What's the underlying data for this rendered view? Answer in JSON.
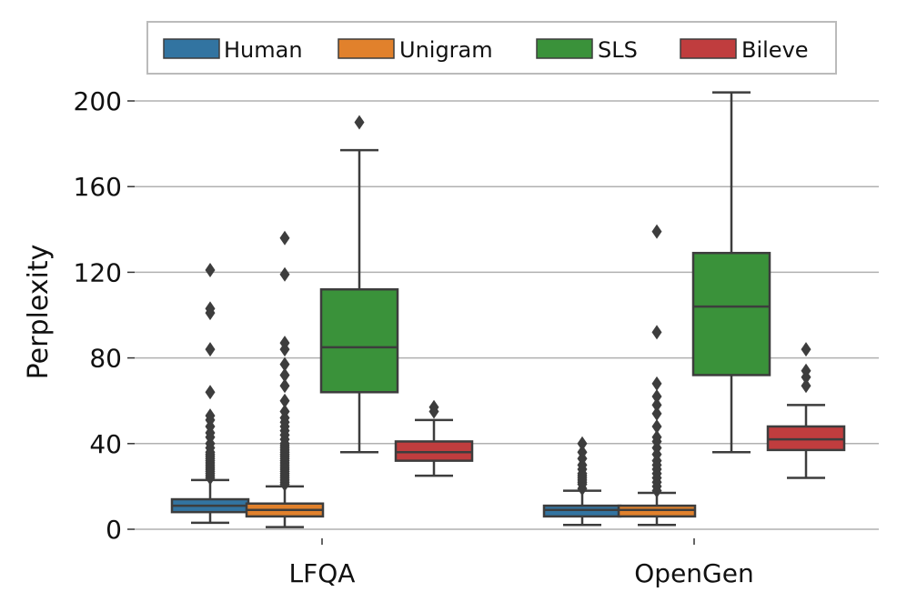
{
  "chart_data": {
    "type": "box",
    "title": "",
    "xlabel": "",
    "ylabel": "Perplexity",
    "ylim": [
      0,
      205
    ],
    "yticks": [
      0,
      40,
      80,
      120,
      160,
      200
    ],
    "ytick_labels": [
      "0",
      "40",
      "80",
      "120",
      "160",
      "200"
    ],
    "grid": "horizontal",
    "legend_position": "top-center",
    "categories": [
      "LFQA",
      "OpenGen"
    ],
    "series": [
      {
        "name": "Human",
        "color": "#3274a1",
        "boxes": [
          {
            "category": "LFQA",
            "whisker_low": 3,
            "q1": 8,
            "median": 11,
            "q3": 14,
            "whisker_high": 23,
            "outliers": [
              24,
              25,
              26,
              27,
              28,
              29,
              30,
              31,
              32,
              33,
              34,
              35,
              36,
              38,
              40,
              43,
              45,
              48,
              51,
              53,
              64,
              84,
              101,
              103,
              121
            ]
          },
          {
            "category": "OpenGen",
            "whisker_low": 2,
            "q1": 6,
            "median": 9,
            "q3": 11,
            "whisker_high": 18,
            "outliers": [
              19,
              21,
              22,
              23,
              24,
              25,
              26,
              28,
              30,
              33,
              36,
              40
            ]
          }
        ]
      },
      {
        "name": "Unigram",
        "color": "#e1812c",
        "boxes": [
          {
            "category": "LFQA",
            "whisker_low": 1,
            "q1": 6,
            "median": 9,
            "q3": 12,
            "whisker_high": 20,
            "outliers": [
              21,
              22,
              23,
              24,
              25,
              26,
              27,
              28,
              29,
              30,
              31,
              32,
              33,
              34,
              35,
              36,
              37,
              38,
              39,
              40,
              42,
              44,
              46,
              48,
              50,
              52,
              55,
              60,
              67,
              72,
              77,
              84,
              87,
              119,
              136
            ]
          },
          {
            "category": "OpenGen",
            "whisker_low": 2,
            "q1": 6,
            "median": 9,
            "q3": 11,
            "whisker_high": 17,
            "outliers": [
              18,
              20,
              22,
              24,
              26,
              28,
              30,
              32,
              35,
              38,
              41,
              43,
              48,
              54,
              58,
              62,
              68,
              92,
              139
            ]
          }
        ]
      },
      {
        "name": "SLS",
        "color": "#3a923a",
        "boxes": [
          {
            "category": "LFQA",
            "whisker_low": 36,
            "q1": 64,
            "median": 85,
            "q3": 112,
            "whisker_high": 177,
            "outliers": [
              190
            ]
          },
          {
            "category": "OpenGen",
            "whisker_low": 36,
            "q1": 72,
            "median": 104,
            "q3": 129,
            "whisker_high": 204,
            "outliers": []
          }
        ]
      },
      {
        "name": "Bileve",
        "color": "#c03d3e",
        "boxes": [
          {
            "category": "LFQA",
            "whisker_low": 25,
            "q1": 32,
            "median": 36,
            "q3": 41,
            "whisker_high": 51,
            "outliers": [
              55,
              57
            ]
          },
          {
            "category": "OpenGen",
            "whisker_low": 24,
            "q1": 37,
            "median": 42,
            "q3": 48,
            "whisker_high": 58,
            "outliers": [
              67,
              71,
              74,
              84
            ]
          }
        ]
      }
    ]
  }
}
